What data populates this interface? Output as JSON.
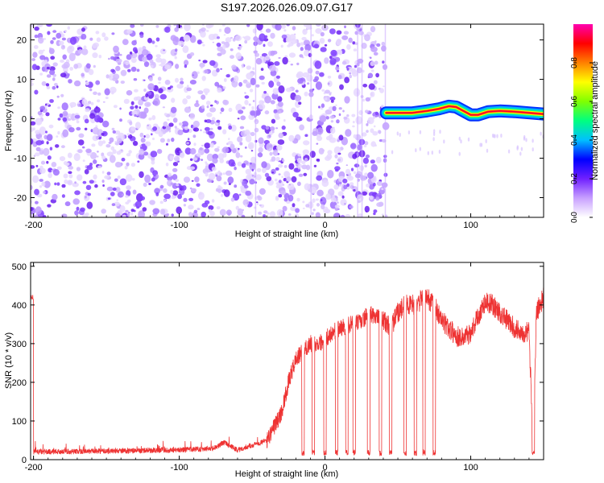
{
  "title": "S197.2026.026.09.07.G17",
  "chart_data": [
    {
      "type": "heatmap",
      "xlabel": "Height of straight line (km)",
      "ylabel": "Frequency (Hz)",
      "xlim": [
        -202,
        150
      ],
      "ylim": [
        -25,
        24
      ],
      "xticks": [
        -200,
        -100,
        0,
        100
      ],
      "yticks": [
        -20,
        -10,
        0,
        10,
        20
      ],
      "noise_region_x": [
        -202,
        42
      ],
      "signal_region_x": [
        42,
        150
      ],
      "signal_track": [
        {
          "x": 42,
          "f": 1.5
        },
        {
          "x": 50,
          "f": 1.5
        },
        {
          "x": 60,
          "f": 1.5
        },
        {
          "x": 70,
          "f": 2.0
        },
        {
          "x": 78,
          "f": 2.5
        },
        {
          "x": 85,
          "f": 3.2
        },
        {
          "x": 90,
          "f": 3.0
        },
        {
          "x": 95,
          "f": 2.0
        },
        {
          "x": 100,
          "f": 1.0
        },
        {
          "x": 105,
          "f": 1.0
        },
        {
          "x": 112,
          "f": 1.8
        },
        {
          "x": 120,
          "f": 2.0
        },
        {
          "x": 130,
          "f": 1.8
        },
        {
          "x": 140,
          "f": 1.5
        },
        {
          "x": 150,
          "f": 1.2
        }
      ],
      "colorbar": {
        "label": "Normalized spectral amplitude",
        "range": [
          0.0,
          1.0
        ],
        "ticks": [
          "0.0",
          "0.2",
          "0.4",
          "0.6",
          "0.8"
        ],
        "colors": [
          "#ffffff",
          "#c8a0ff",
          "#7020ff",
          "#0000ff",
          "#00c0ff",
          "#00ff80",
          "#80ff00",
          "#ffff00",
          "#ff8000",
          "#ff0000",
          "#ff00b0"
        ]
      }
    },
    {
      "type": "line",
      "xlabel": "Height of straight line (km)",
      "ylabel": "SNR (10 * v/v)",
      "xlim": [
        -202,
        150
      ],
      "ylim": [
        0,
        510
      ],
      "xticks": [
        -200,
        -100,
        0,
        100
      ],
      "yticks": [
        0,
        100,
        200,
        300,
        400,
        500
      ],
      "color": "#ee3333",
      "envelope": [
        {
          "x": -200,
          "y": 20
        },
        {
          "x": -150,
          "y": 22
        },
        {
          "x": -100,
          "y": 25
        },
        {
          "x": -75,
          "y": 30
        },
        {
          "x": -70,
          "y": 45
        },
        {
          "x": -60,
          "y": 25
        },
        {
          "x": -40,
          "y": 50
        },
        {
          "x": -30,
          "y": 120
        },
        {
          "x": -25,
          "y": 200
        },
        {
          "x": -20,
          "y": 260
        },
        {
          "x": -15,
          "y": 280
        },
        {
          "x": -10,
          "y": 300
        },
        {
          "x": -5,
          "y": 300
        },
        {
          "x": 0,
          "y": 310
        },
        {
          "x": 5,
          "y": 330
        },
        {
          "x": 10,
          "y": 340
        },
        {
          "x": 15,
          "y": 345
        },
        {
          "x": 20,
          "y": 355
        },
        {
          "x": 25,
          "y": 355
        },
        {
          "x": 30,
          "y": 380
        },
        {
          "x": 35,
          "y": 370
        },
        {
          "x": 40,
          "y": 360
        },
        {
          "x": 45,
          "y": 340
        },
        {
          "x": 50,
          "y": 380
        },
        {
          "x": 55,
          "y": 400
        },
        {
          "x": 60,
          "y": 400
        },
        {
          "x": 65,
          "y": 410
        },
        {
          "x": 70,
          "y": 420
        },
        {
          "x": 75,
          "y": 400
        },
        {
          "x": 80,
          "y": 360
        },
        {
          "x": 85,
          "y": 340
        },
        {
          "x": 90,
          "y": 320
        },
        {
          "x": 95,
          "y": 315
        },
        {
          "x": 100,
          "y": 330
        },
        {
          "x": 105,
          "y": 370
        },
        {
          "x": 110,
          "y": 410
        },
        {
          "x": 115,
          "y": 400
        },
        {
          "x": 120,
          "y": 380
        },
        {
          "x": 125,
          "y": 360
        },
        {
          "x": 130,
          "y": 340
        },
        {
          "x": 135,
          "y": 330
        },
        {
          "x": 140,
          "y": 330
        },
        {
          "x": 143,
          "y": 20
        },
        {
          "x": 145,
          "y": 380
        },
        {
          "x": 150,
          "y": 420
        }
      ],
      "dropouts_x": [
        -15,
        -8,
        0,
        8,
        15,
        20,
        30,
        38,
        45,
        55,
        62,
        68,
        75,
        143
      ]
    }
  ]
}
